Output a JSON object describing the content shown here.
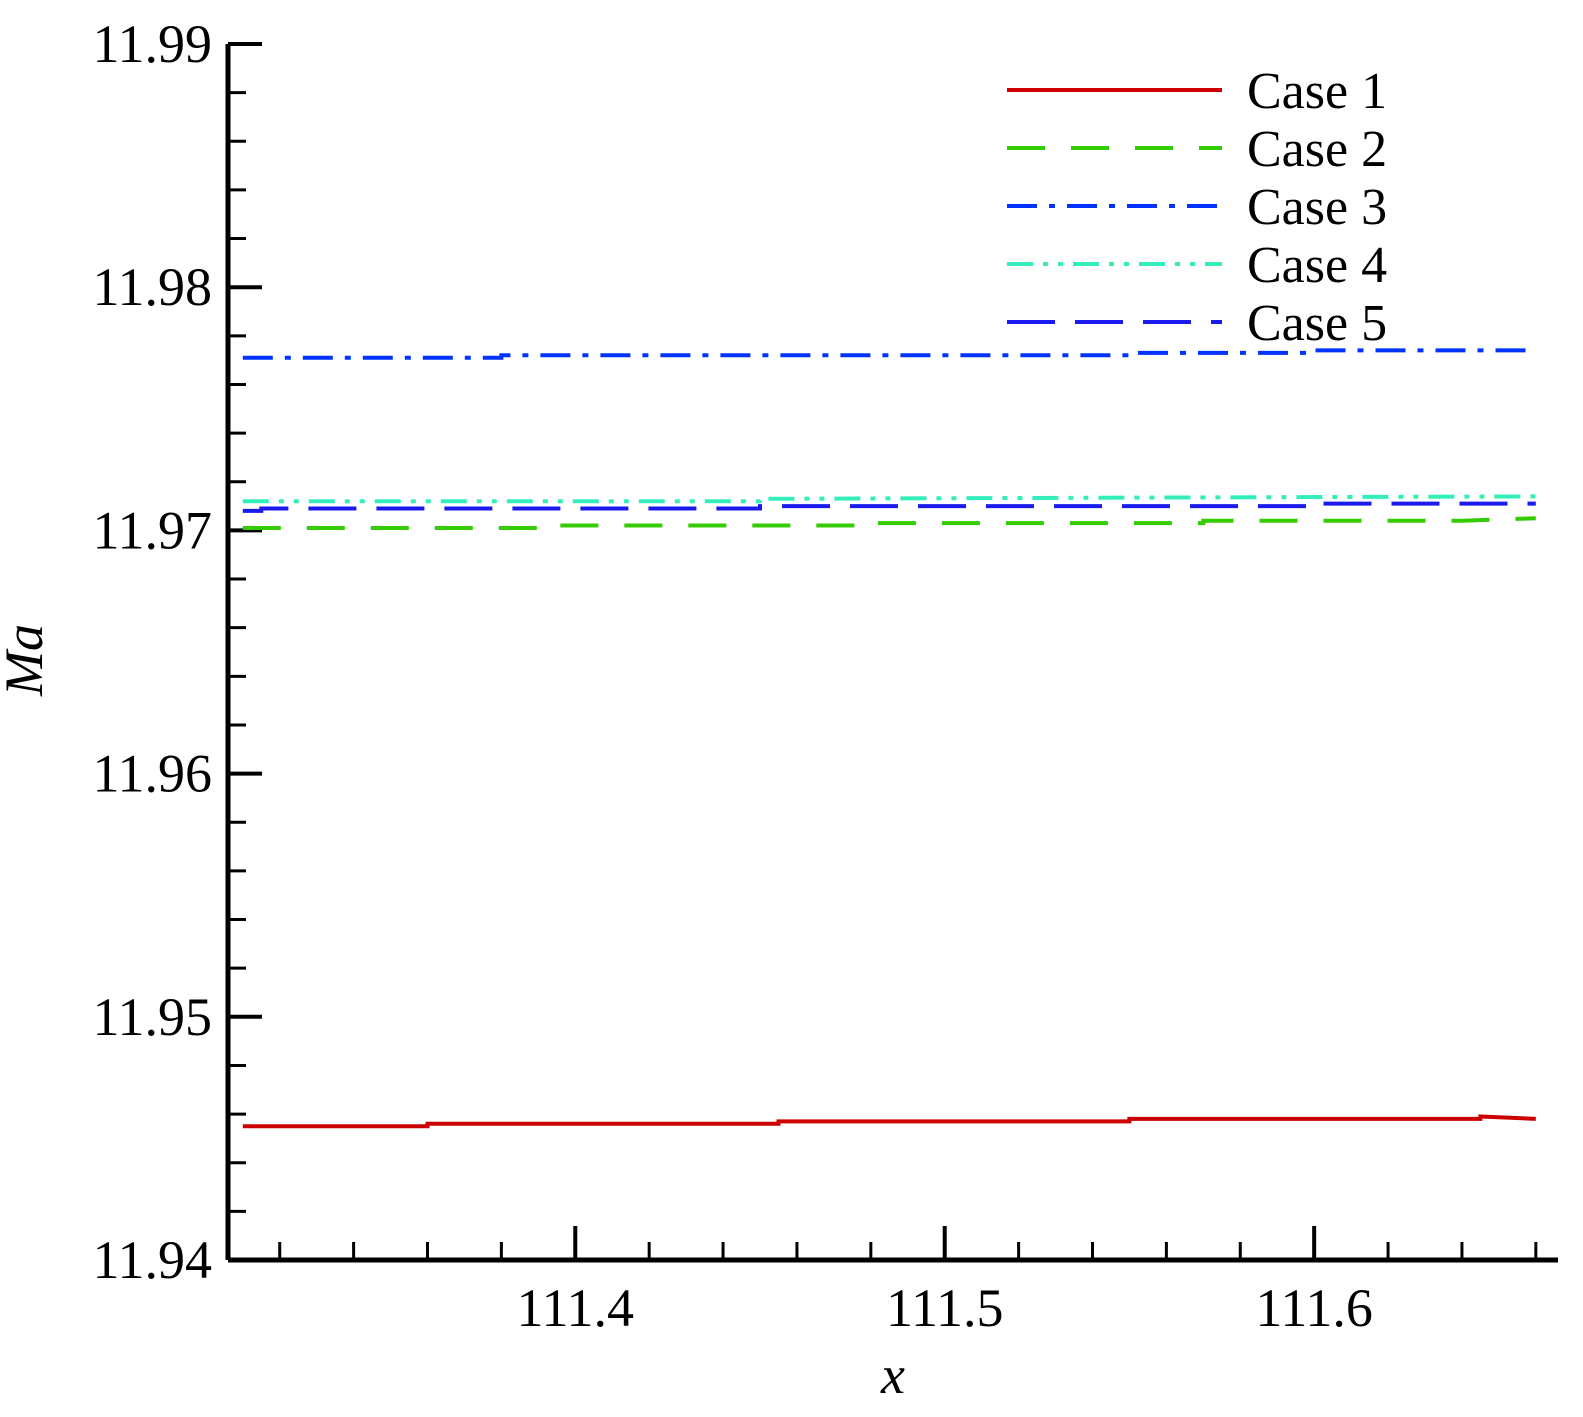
{
  "chart_data": {
    "type": "line",
    "title": "",
    "xlabel": "x",
    "ylabel": "Ma",
    "xlim": [
      111.306,
      111.666
    ],
    "ylim": [
      11.94,
      11.99
    ],
    "x_ticks": [
      111.4,
      111.5,
      111.6
    ],
    "x_tick_labels": [
      "111.4",
      "111.5",
      "111.6"
    ],
    "y_ticks": [
      11.94,
      11.95,
      11.96,
      11.97,
      11.98,
      11.99
    ],
    "y_tick_labels": [
      "11.94",
      "11.95",
      "11.96",
      "11.97",
      "11.98",
      "11.99"
    ],
    "grid": false,
    "legend_position": "top-right",
    "series": [
      {
        "name": "Case 1",
        "color": "#cc0000",
        "dash": "solid",
        "x": [
          111.31,
          111.36,
          111.36,
          111.455,
          111.455,
          111.55,
          111.55,
          111.645,
          111.645,
          111.66
        ],
        "y": [
          11.9455,
          11.9455,
          11.9456,
          11.9456,
          11.9457,
          11.9457,
          11.9458,
          11.9458,
          11.9459,
          11.9458
        ]
      },
      {
        "name": "Case 2",
        "color": "#33cc00",
        "dash": "dash",
        "x": [
          111.31,
          111.39,
          111.39,
          111.48,
          111.48,
          111.57,
          111.57,
          111.64,
          111.66
        ],
        "y": [
          11.9701,
          11.9701,
          11.9702,
          11.9702,
          11.9703,
          11.9703,
          11.9704,
          11.9704,
          11.9705
        ]
      },
      {
        "name": "Case 3",
        "color": "#0033ff",
        "dash": "dashdot",
        "x": [
          111.31,
          111.38,
          111.38,
          111.46,
          111.46,
          111.55,
          111.55,
          111.6,
          111.6,
          111.66
        ],
        "y": [
          11.9771,
          11.9771,
          11.9772,
          11.9772,
          11.9772,
          11.9772,
          11.9773,
          11.9773,
          11.9774,
          11.9774
        ]
      },
      {
        "name": "Case 4",
        "color": "#33eebb",
        "dash": "dashdotdot",
        "x": [
          111.31,
          111.45,
          111.45,
          111.66
        ],
        "y": [
          11.9712,
          11.9712,
          11.9713,
          11.9714
        ]
      },
      {
        "name": "Case 5",
        "color": "#1a1aee",
        "dash": "longdash",
        "x": [
          111.31,
          111.315,
          111.315,
          111.45,
          111.45,
          111.6,
          111.6,
          111.66
        ],
        "y": [
          11.9708,
          11.9708,
          11.9709,
          11.9709,
          11.971,
          11.971,
          11.9711,
          11.9711
        ]
      }
    ]
  }
}
